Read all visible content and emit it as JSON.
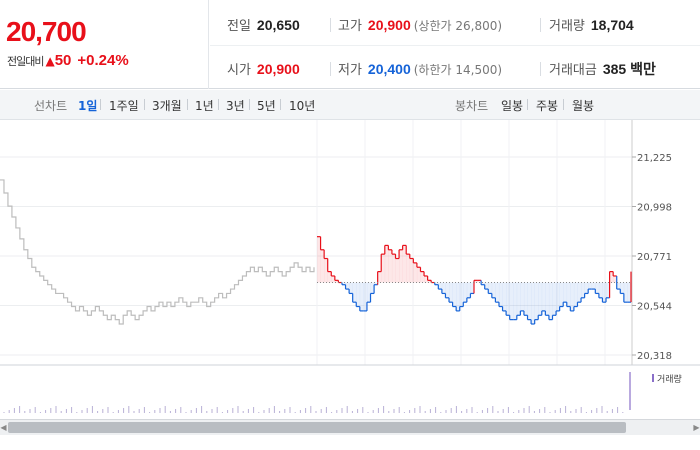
{
  "summary": {
    "current_price": "20,700",
    "change_label": "전일대비",
    "change_arrow": "▲",
    "change_value": "50",
    "change_pct": "+0.24%",
    "prev_close_label": "전일",
    "prev_close": "20,650",
    "high_label": "고가",
    "high": "20,900",
    "upper_limit": "(상한가 26,800)",
    "volume_label": "거래량",
    "volume": "18,704",
    "open_label": "시가",
    "open": "20,900",
    "low_label": "저가",
    "low": "20,400",
    "lower_limit": "(하한가 14,500)",
    "amount_label": "거래대금",
    "amount": "385 백만"
  },
  "period_bar": {
    "line_label": "선차트",
    "line_options": [
      "1일",
      "1주일",
      "3개월",
      "1년",
      "3년",
      "5년",
      "10년"
    ],
    "active_line_option": "1일",
    "candle_label": "봉차트",
    "candle_options": [
      "일봉",
      "주봉",
      "월봉"
    ]
  },
  "colors": {
    "up": "#e8101a",
    "down": "#1563d8",
    "prev_day_line": "#bdbdbd"
  },
  "chart_data": {
    "type": "line",
    "y_ticks": [
      "21,225",
      "20,998",
      "20,771",
      "20,544",
      "20,318"
    ],
    "ylim": [
      20318,
      21225
    ],
    "baseline": 20650,
    "volume_legend": "거래량",
    "prev_day_series": [
      21120,
      21060,
      21000,
      20950,
      20900,
      20850,
      20800,
      20760,
      20720,
      20700,
      20680,
      20660,
      20640,
      20620,
      20600,
      20600,
      20580,
      20560,
      20540,
      20520,
      20540,
      20520,
      20500,
      20520,
      20540,
      20520,
      20500,
      20480,
      20500,
      20480,
      20460,
      20500,
      20520,
      20500,
      20480,
      20500,
      20520,
      20540,
      20520,
      20540,
      20560,
      20540,
      20560,
      20540,
      20560,
      20580,
      20560,
      20540,
      20560,
      20560,
      20580,
      20560,
      20540,
      20560,
      20580,
      20600,
      20580,
      20600,
      20620,
      20640,
      20660,
      20680,
      20700,
      20720,
      20700,
      20720,
      20700,
      20680,
      20700,
      20720,
      20700,
      20680,
      20700,
      20720,
      20740,
      20720,
      20700,
      20720,
      20700,
      20720
    ],
    "today_series": [
      20860,
      20800,
      20760,
      20700,
      20680,
      20660,
      20650,
      20640,
      20620,
      20600,
      20560,
      20540,
      20520,
      20520,
      20560,
      20600,
      20640,
      20700,
      20780,
      20820,
      20800,
      20780,
      20760,
      20800,
      20820,
      20780,
      20760,
      20740,
      20720,
      20700,
      20680,
      20660,
      20650,
      20640,
      20620,
      20600,
      20580,
      20560,
      20540,
      20520,
      20540,
      20560,
      20580,
      20600,
      20660,
      20660,
      20640,
      20620,
      20600,
      20580,
      20560,
      20540,
      20520,
      20500,
      20480,
      20480,
      20500,
      20520,
      20500,
      20480,
      20460,
      20480,
      20500,
      20520,
      20500,
      20480,
      20500,
      20520,
      20540,
      20560,
      20540,
      20520,
      20540,
      20560,
      20580,
      20600,
      20620,
      20620,
      20600,
      20580,
      20560,
      20580,
      20700,
      20680,
      20620,
      20600,
      20560,
      20560,
      20700
    ]
  }
}
